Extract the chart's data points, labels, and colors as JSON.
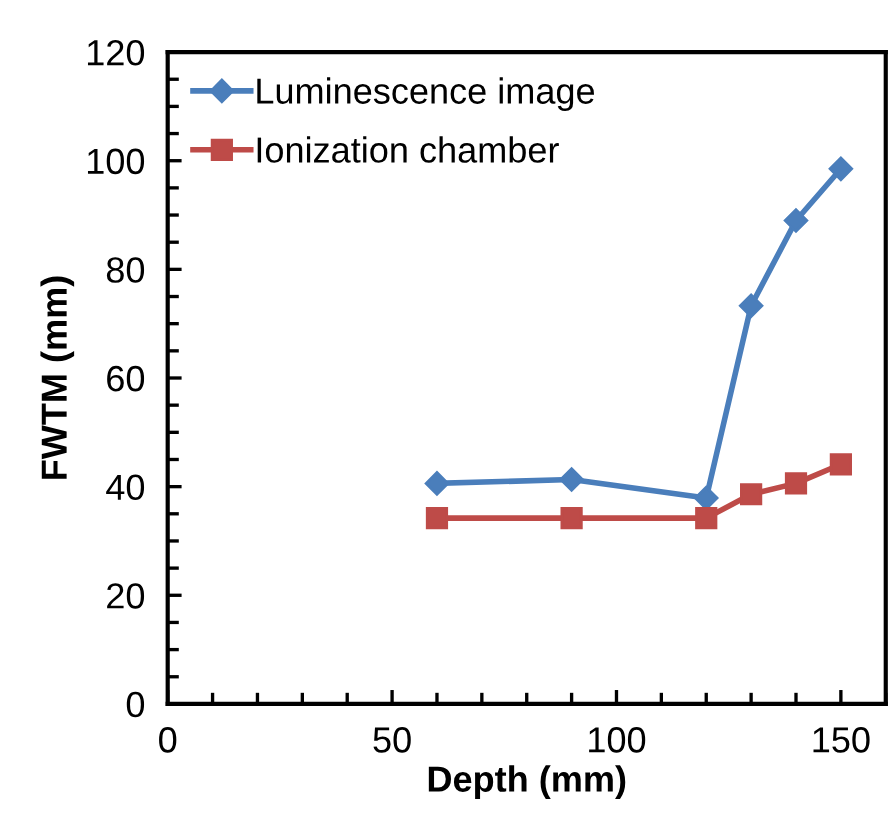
{
  "chart_data": {
    "type": "line",
    "xlabel": "Depth (mm)",
    "ylabel": "FWTM (mm)",
    "x": [
      60,
      90,
      120,
      130,
      140,
      150
    ],
    "series": [
      {
        "name": "Luminescence image",
        "color": "#4a7ebb",
        "marker": "diamond",
        "values": [
          40.6,
          41.3,
          37.9,
          73.3,
          89.0,
          98.5
        ]
      },
      {
        "name": "Ionization chamber",
        "color": "#be4b48",
        "marker": "square",
        "values": [
          34.2,
          34.2,
          34.2,
          38.6,
          40.6,
          44.1
        ]
      }
    ],
    "xlim": [
      0,
      160
    ],
    "xticks": [
      0,
      50,
      100,
      150
    ],
    "ylim": [
      0,
      120
    ],
    "yticks": [
      0,
      20,
      40,
      60,
      80,
      100,
      120
    ],
    "grid": false,
    "legend": "top left",
    "line_style": "solid"
  }
}
